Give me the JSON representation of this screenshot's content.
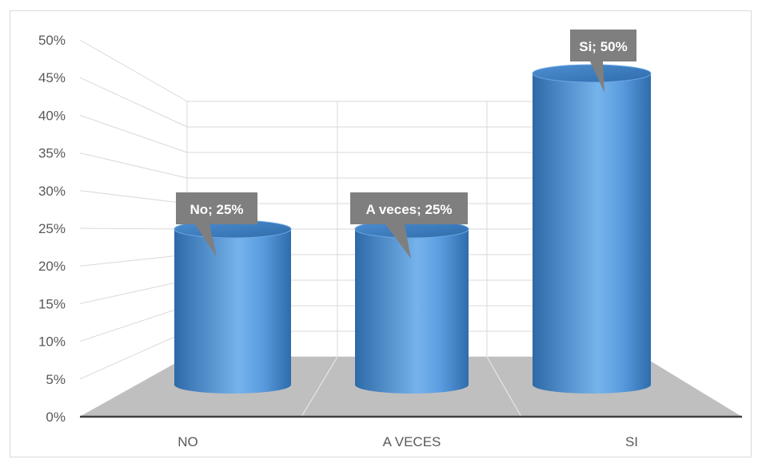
{
  "chart_data": {
    "type": "bar",
    "categories": [
      "NO",
      "A VECES",
      "SI"
    ],
    "values": [
      25,
      25,
      50
    ],
    "data_labels": [
      "No; 25%",
      "A veces; 25%",
      "Si; 50%"
    ],
    "y_ticks": [
      "0%",
      "5%",
      "10%",
      "15%",
      "20%",
      "25%",
      "30%",
      "35%",
      "40%",
      "45%",
      "50%"
    ],
    "ylim": [
      0,
      50
    ],
    "y_unit": "%",
    "grid": true,
    "style": "3d-cylinder",
    "colors": {
      "bar": "#4a8fd0",
      "bar_dark": "#2e6aa8",
      "bar_light": "#8ec3f2",
      "floor": "#bfbfbf",
      "label_bg": "#7f7f7f",
      "grid": "#d9d9d9",
      "text": "#595959"
    }
  }
}
